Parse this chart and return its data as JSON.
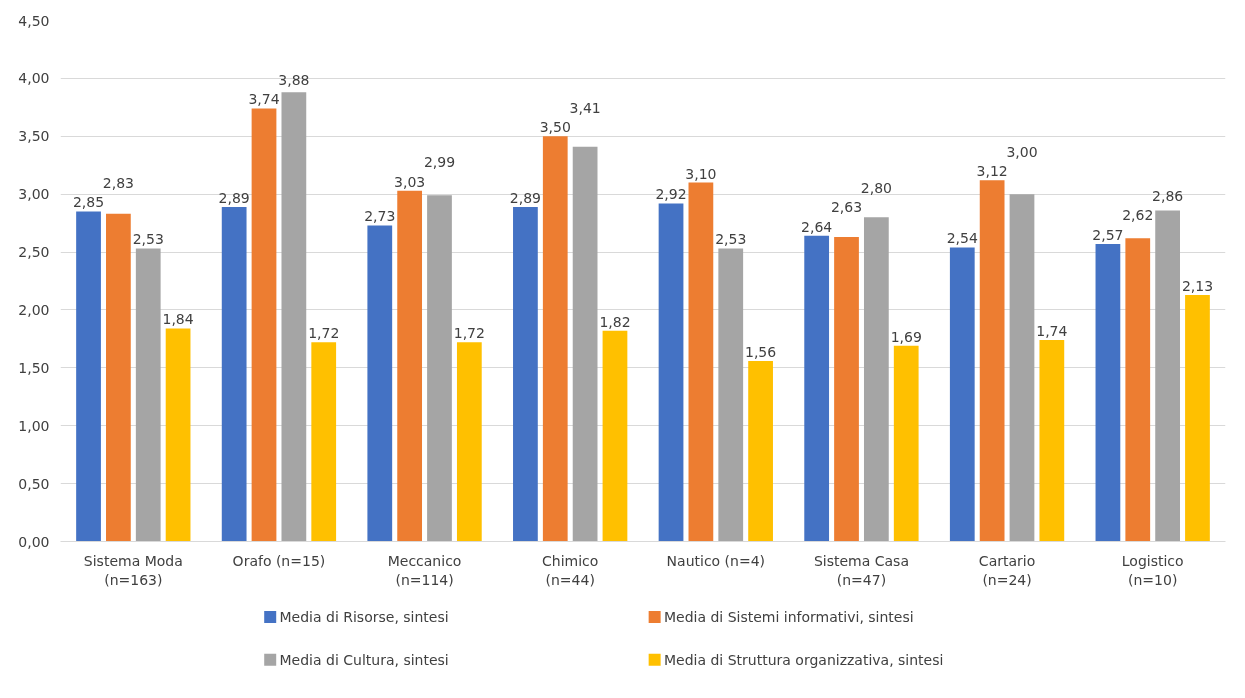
{
  "chart_data": {
    "type": "bar",
    "categories": [
      "Sistema Moda\n(n=163)",
      "Orafo (n=15)",
      "Meccanico\n(n=114)",
      "Chimico\n(n=44)",
      "Nautico (n=4)",
      "Sistema Casa\n(n=47)",
      "Cartario\n(n=24)",
      "Logistico\n(n=10)"
    ],
    "series": [
      {
        "name": "Media di Risorse, sintesi",
        "color": "#4472c4",
        "values": [
          2.85,
          2.89,
          2.73,
          2.89,
          2.92,
          2.64,
          2.54,
          2.57
        ],
        "value_labels": [
          "2,85",
          "2,89",
          "2,73",
          "2,89",
          "2,92",
          "2,64",
          "2,54",
          "2,57"
        ]
      },
      {
        "name": "Media di Sistemi informativi, sintesi",
        "color": "#ed7d31",
        "values": [
          2.83,
          3.74,
          3.03,
          3.5,
          3.1,
          2.63,
          3.12,
          2.62
        ],
        "value_labels": [
          "2,83",
          "3,74",
          "3,03",
          "3,50",
          "3,10",
          "2,63",
          "3,12",
          "2,62"
        ]
      },
      {
        "name": "Media di Cultura, sintesi",
        "color": "#a5a5a5",
        "values": [
          2.53,
          3.88,
          2.99,
          3.41,
          2.53,
          2.8,
          3.0,
          2.86
        ],
        "value_labels": [
          "2,53",
          "3,88",
          "2,99",
          "3,41",
          "2,53",
          "2,80",
          "3,00",
          "2,86"
        ]
      },
      {
        "name": "Media di Struttura organizzativa, sintesi",
        "color": "#ffc000",
        "values": [
          1.84,
          1.72,
          1.72,
          1.82,
          1.56,
          1.69,
          1.74,
          2.13
        ],
        "value_labels": [
          "1,84",
          "1,72",
          "1,72",
          "1,82",
          "1,56",
          "1,69",
          "1,74",
          "2,13"
        ]
      }
    ],
    "ylim": [
      0,
      4.5
    ],
    "yticks": [
      {
        "value": 0,
        "label": "0,00"
      },
      {
        "value": 0.5,
        "label": "0,50"
      },
      {
        "value": 1,
        "label": "1,00"
      },
      {
        "value": 1.5,
        "label": "1,50"
      },
      {
        "value": 2,
        "label": "2,00"
      },
      {
        "value": 2.5,
        "label": "2,50"
      },
      {
        "value": 3,
        "label": "3,00"
      },
      {
        "value": 3.5,
        "label": "3,50"
      },
      {
        "value": 4,
        "label": "4,00"
      },
      {
        "value": 4.5,
        "label": "4,50"
      }
    ],
    "grid": "y",
    "legend": "bottom",
    "data_labels": true
  }
}
